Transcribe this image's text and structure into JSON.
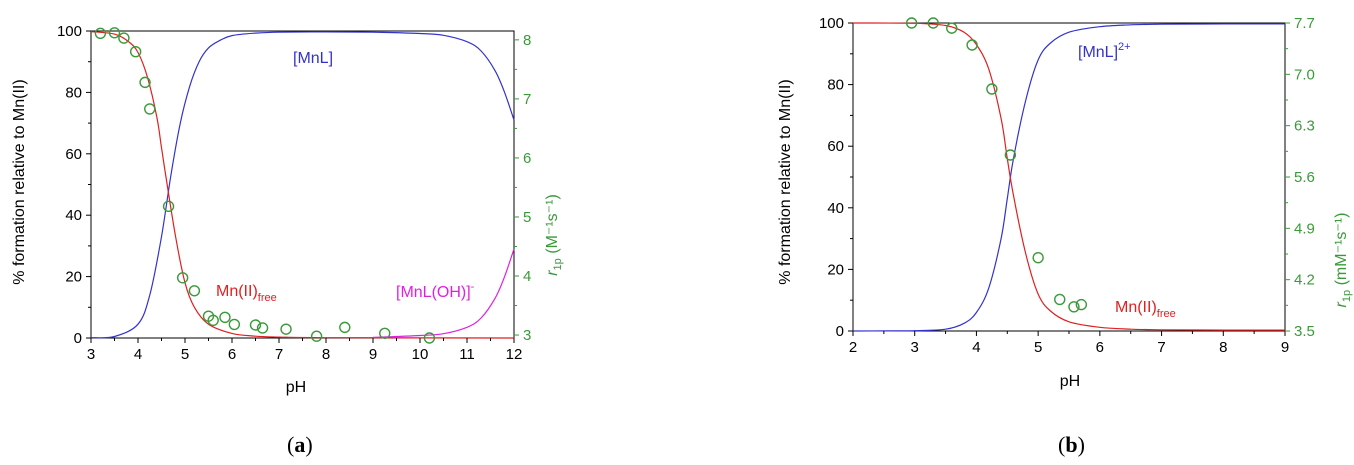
{
  "chart_data": [
    {
      "type": "line",
      "panel_label": "a",
      "xlabel": "pH",
      "ylabel": "% formation relative to Mn(II)",
      "y2label_main": "r",
      "y2label_sub": "1p",
      "y2label_unit": " (M⁻¹s⁻¹)",
      "xlim": [
        3,
        12
      ],
      "ylim": [
        0,
        100
      ],
      "y2lim": [
        2.95,
        8.15
      ],
      "xticks": [
        3,
        4,
        5,
        6,
        7,
        8,
        9,
        10,
        11,
        12
      ],
      "yticks": [
        0,
        20,
        40,
        60,
        80,
        100
      ],
      "y2ticks": [
        3,
        4,
        5,
        6,
        7,
        8
      ],
      "grid": false,
      "series": [
        {
          "name_main": "[MnL]",
          "color": "#3333cc",
          "x": [
            3.0,
            3.5,
            4.0,
            4.25,
            4.5,
            4.7,
            4.9,
            5.1,
            5.3,
            5.5,
            5.75,
            6.0,
            6.5,
            7.0,
            8.0,
            9.0,
            10.0,
            10.5,
            11.0,
            11.3,
            11.6,
            11.8,
            12.0
          ],
          "y": [
            0.1,
            0.5,
            4.5,
            14,
            33,
            53,
            70,
            82,
            90,
            94.5,
            97,
            98.5,
            99.3,
            99.6,
            99.7,
            99.6,
            99.2,
            98.6,
            96.5,
            93.5,
            87,
            80,
            71
          ]
        },
        {
          "name_main": "Mn(II)",
          "name_sub": "free",
          "color": "#e02020",
          "x": [
            3.0,
            3.5,
            3.8,
            4.0,
            4.2,
            4.4,
            4.5,
            4.6,
            4.8,
            5.0,
            5.2,
            5.5,
            6.0,
            6.5,
            7.0,
            8.0,
            12.0
          ],
          "y": [
            99.8,
            99,
            96.5,
            93,
            85,
            72,
            62,
            52,
            33,
            18,
            10,
            4.5,
            1.5,
            0.6,
            0.3,
            0.1,
            0
          ]
        },
        {
          "name_main": "[MnL(OH)]",
          "name_sup": "-",
          "color": "#e020e0",
          "x": [
            9.0,
            10.0,
            10.5,
            11.0,
            11.3,
            11.6,
            11.8,
            12.0
          ],
          "y": [
            0.2,
            0.8,
            1.4,
            3.5,
            6.5,
            13,
            20,
            29
          ]
        }
      ],
      "relaxivity_points": {
        "color": "#3a9a3a",
        "axis": "right",
        "x": [
          3.2,
          3.5,
          3.7,
          3.95,
          4.15,
          4.25,
          4.65,
          4.95,
          5.2,
          5.5,
          5.6,
          5.85,
          6.05,
          6.5,
          6.65,
          7.15,
          7.8,
          8.4,
          9.25,
          10.2
        ],
        "y": [
          8.11,
          8.12,
          8.03,
          7.8,
          7.28,
          6.83,
          5.18,
          3.97,
          3.75,
          3.32,
          3.25,
          3.3,
          3.18,
          3.17,
          3.12,
          3.1,
          2.98,
          3.13,
          3.03,
          2.95
        ]
      }
    },
    {
      "type": "line",
      "panel_label": "b",
      "xlabel": "pH",
      "ylabel": "% formation relative to Mn(II)",
      "y2label_main": "r",
      "y2label_sub": "1p",
      "y2label_unit": " (mM⁻¹s⁻¹)",
      "xlim": [
        2,
        9
      ],
      "ylim": [
        0,
        100
      ],
      "y2lim": [
        3.5,
        7.7
      ],
      "xticks": [
        2,
        3,
        4,
        5,
        6,
        7,
        8,
        9
      ],
      "yticks": [
        0,
        20,
        40,
        60,
        80,
        100
      ],
      "y2ticks": [
        "3.5",
        "4.2",
        "4.9",
        "5.6",
        "6.3",
        "7.0",
        "7.7"
      ],
      "grid": false,
      "series": [
        {
          "name_main": "[MnL]",
          "name_sup": "2+",
          "color": "#3333cc",
          "x": [
            2.0,
            3.0,
            3.5,
            3.8,
            4.0,
            4.2,
            4.4,
            4.5,
            4.6,
            4.8,
            5.0,
            5.2,
            5.5,
            6.0,
            6.5,
            7.0,
            8.0,
            9.0
          ],
          "y": [
            0,
            0.1,
            0.6,
            2.5,
            6,
            14,
            30,
            43,
            56,
            75,
            88,
            93.5,
            97,
            98.8,
            99.4,
            99.6,
            99.7,
            99.7
          ]
        },
        {
          "name_main": "Mn(II)",
          "name_sub": "free",
          "color": "#e02020",
          "x": [
            2.0,
            3.0,
            3.5,
            3.8,
            4.0,
            4.2,
            4.4,
            4.5,
            4.6,
            4.8,
            5.0,
            5.2,
            5.5,
            6.0,
            6.5,
            7.0,
            8.0,
            9.0
          ],
          "y": [
            100,
            99.9,
            99.2,
            97,
            93,
            85,
            69,
            56,
            44,
            25,
            12,
            6.5,
            3,
            1.2,
            0.6,
            0.4,
            0.3,
            0.3
          ]
        }
      ],
      "relaxivity_points": {
        "color": "#3a9a3a",
        "axis": "right",
        "x": [
          2.95,
          3.3,
          3.6,
          3.93,
          4.25,
          4.55,
          5.0,
          5.35,
          5.58,
          5.7
        ],
        "y": [
          7.7,
          7.7,
          7.63,
          7.4,
          6.8,
          5.9,
          4.5,
          3.93,
          3.83,
          3.86
        ]
      }
    }
  ]
}
